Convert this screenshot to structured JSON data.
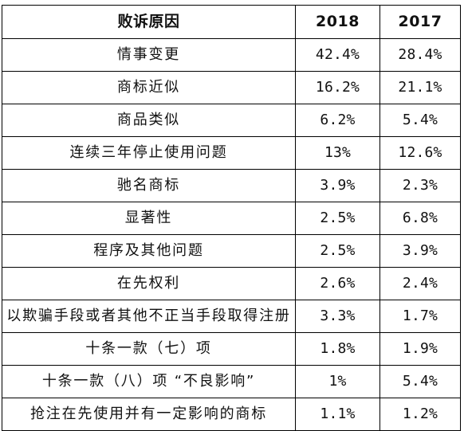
{
  "table": {
    "headers": [
      "败诉原因",
      "2018",
      "2017"
    ],
    "rows": [
      {
        "reason": "情事变更",
        "y2018": "42.4%",
        "y2017": "28.4%"
      },
      {
        "reason": "商标近似",
        "y2018": "16.2%",
        "y2017": "21.1%"
      },
      {
        "reason": "商品类似",
        "y2018": "6.2%",
        "y2017": "5.4%"
      },
      {
        "reason": "连续三年停止使用问题",
        "y2018": "13%",
        "y2017": "12.6%"
      },
      {
        "reason": "驰名商标",
        "y2018": "3.9%",
        "y2017": "2.3%"
      },
      {
        "reason": "显著性",
        "y2018": "2.5%",
        "y2017": "6.8%"
      },
      {
        "reason": "程序及其他问题",
        "y2018": "2.5%",
        "y2017": "3.9%"
      },
      {
        "reason": "在先权利",
        "y2018": "2.6%",
        "y2017": "2.4%"
      },
      {
        "reason": "以欺骗手段或者其他不正当手段取得注册",
        "y2018": "3.3%",
        "y2017": "1.7%"
      },
      {
        "reason": "十条一款（七）项",
        "y2018": "1.8%",
        "y2017": "1.9%"
      },
      {
        "reason": "十条一款（八）项 “不良影响”",
        "y2018": "1%",
        "y2017": "5.4%"
      },
      {
        "reason": "抢注在先使用并有一定影响的商标",
        "y2018": "1.1%",
        "y2017": "1.2%"
      }
    ]
  }
}
